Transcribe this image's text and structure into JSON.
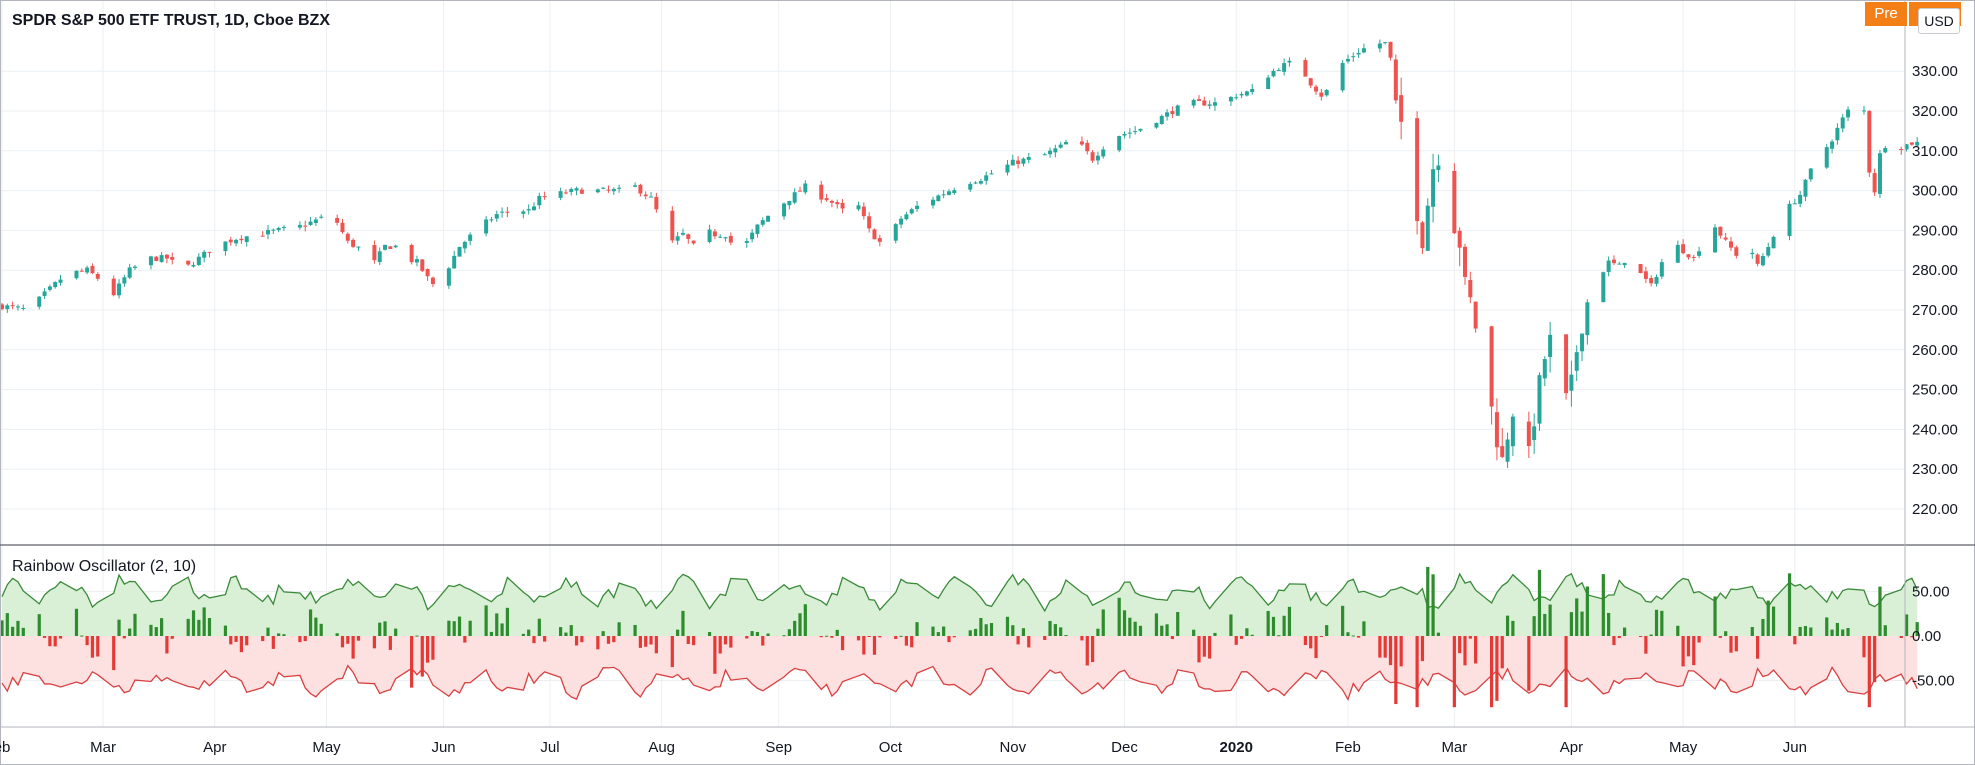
{
  "header": {
    "symbol_title": "SPDR S&P 500 ETF TRUST, 1D, Cboe BZX",
    "session_badge": "Pre",
    "currency_button": "USD"
  },
  "indicator": {
    "title": "Rainbow Oscillator (2, 10)"
  },
  "colors": {
    "up": "#26a69a",
    "down": "#ef5350",
    "osc_up_bar": "#2e8b2e",
    "osc_down_bar": "#e53935",
    "osc_up_fill": "#d9f0d6",
    "osc_down_fill": "#fde0e0",
    "grid": "#eceff2",
    "text": "#131722",
    "badge": "#f57f17"
  },
  "chart_data": [
    {
      "type": "candlestick",
      "title": "SPDR S&P 500 ETF TRUST, 1D, Cboe BZX",
      "y_ticks": [
        220,
        230,
        240,
        250,
        260,
        270,
        280,
        290,
        300,
        310,
        320,
        330
      ],
      "y_tick_labels": [
        "220.00",
        "230.00",
        "240.00",
        "250.00",
        "260.00",
        "270.00",
        "280.00",
        "290.00",
        "300.00",
        "310.00",
        "320.00",
        "330.00"
      ],
      "ylim": [
        214,
        340
      ],
      "x_labels": [
        "eb",
        "Mar",
        "Apr",
        "May",
        "Jun",
        "Jul",
        "Aug",
        "Sep",
        "Oct",
        "Nov",
        "Dec",
        "2020",
        "Feb",
        "Mar",
        "Apr",
        "May",
        "Jun"
      ],
      "x_label_positions_days": [
        0,
        19,
        40,
        61,
        83,
        103,
        124,
        146,
        167,
        190,
        211,
        232,
        253,
        273,
        295,
        316,
        337
      ],
      "close_anchors": [
        [
          0,
          271
        ],
        [
          5,
          270
        ],
        [
          8,
          274
        ],
        [
          12,
          279
        ],
        [
          16,
          280
        ],
        [
          19,
          277
        ],
        [
          21,
          274
        ],
        [
          24,
          280
        ],
        [
          28,
          283
        ],
        [
          31,
          283
        ],
        [
          34,
          280
        ],
        [
          37,
          283
        ],
        [
          40,
          286
        ],
        [
          44,
          288
        ],
        [
          48,
          289
        ],
        [
          52,
          290
        ],
        [
          56,
          291
        ],
        [
          60,
          293
        ],
        [
          63,
          292
        ],
        [
          65,
          287
        ],
        [
          68,
          285
        ],
        [
          70,
          282
        ],
        [
          72,
          286
        ],
        [
          74,
          286
        ],
        [
          76,
          283
        ],
        [
          78,
          282
        ],
        [
          80,
          278
        ],
        [
          82,
          275
        ],
        [
          84,
          281
        ],
        [
          86,
          286
        ],
        [
          90,
          291
        ],
        [
          93,
          294
        ],
        [
          96,
          295
        ],
        [
          99,
          295
        ],
        [
          101,
          298
        ],
        [
          104,
          299
        ],
        [
          108,
          300
        ],
        [
          112,
          300
        ],
        [
          116,
          300
        ],
        [
          119,
          301
        ],
        [
          122,
          298
        ],
        [
          124,
          292
        ],
        [
          126,
          287
        ],
        [
          128,
          289
        ],
        [
          130,
          286
        ],
        [
          132,
          290
        ],
        [
          134,
          289
        ],
        [
          136,
          289
        ],
        [
          138,
          285
        ],
        [
          140,
          287
        ],
        [
          142,
          291
        ],
        [
          145,
          295
        ],
        [
          148,
          298
        ],
        [
          151,
          301
        ],
        [
          153,
          299
        ],
        [
          155,
          298
        ],
        [
          157,
          296
        ],
        [
          159,
          294
        ],
        [
          161,
          296
        ],
        [
          163,
          290
        ],
        [
          165,
          287
        ],
        [
          167,
          289
        ],
        [
          169,
          293
        ],
        [
          172,
          296
        ],
        [
          175,
          298
        ],
        [
          178,
          300
        ],
        [
          181,
          302
        ],
        [
          184,
          303
        ],
        [
          187,
          305
        ],
        [
          190,
          307
        ],
        [
          193,
          308
        ],
        [
          196,
          309
        ],
        [
          199,
          311
        ],
        [
          201,
          313
        ],
        [
          203,
          311
        ],
        [
          205,
          308
        ],
        [
          207,
          311
        ],
        [
          210,
          314
        ],
        [
          213,
          315
        ],
        [
          216,
          317
        ],
        [
          220,
          320
        ],
        [
          223,
          322
        ],
        [
          226,
          322
        ],
        [
          229,
          322
        ],
        [
          232,
          324
        ],
        [
          235,
          325
        ],
        [
          238,
          329
        ],
        [
          240,
          331
        ],
        [
          242,
          332
        ],
        [
          244,
          331
        ],
        [
          246,
          327
        ],
        [
          248,
          324
        ],
        [
          250,
          326
        ],
        [
          252,
          332
        ],
        [
          255,
          335
        ],
        [
          258,
          337
        ],
        [
          260,
          337
        ],
        [
          261,
          333
        ],
        [
          262,
          322
        ],
        [
          264,
          312
        ],
        [
          265,
          303
        ],
        [
          266,
          295
        ],
        [
          267,
          288
        ],
        [
          268,
          297
        ],
        [
          269,
          306
        ],
        [
          270,
          309
        ],
        [
          271,
          305
        ],
        [
          272,
          296
        ],
        [
          274,
          287
        ],
        [
          275,
          276
        ],
        [
          276,
          272
        ],
        [
          277,
          266
        ],
        [
          278,
          256
        ],
        [
          279,
          250
        ],
        [
          280,
          245
        ],
        [
          281,
          238
        ],
        [
          282,
          232
        ],
        [
          283,
          239
        ],
        [
          284,
          245
        ],
        [
          285,
          236
        ],
        [
          286,
          225
        ],
        [
          287,
          233
        ],
        [
          288,
          243
        ],
        [
          289,
          251
        ],
        [
          290,
          258
        ],
        [
          291,
          262
        ],
        [
          292,
          256
        ],
        [
          293,
          250
        ],
        [
          294,
          247
        ],
        [
          295,
          251
        ],
        [
          296,
          260
        ],
        [
          297,
          267
        ],
        [
          298,
          272
        ],
        [
          300,
          278
        ],
        [
          302,
          282
        ],
        [
          304,
          281
        ],
        [
          306,
          284
        ],
        [
          308,
          279
        ],
        [
          310,
          276
        ],
        [
          312,
          282
        ],
        [
          314,
          287
        ],
        [
          316,
          285
        ],
        [
          318,
          283
        ],
        [
          320,
          288
        ],
        [
          322,
          291
        ],
        [
          324,
          287
        ],
        [
          326,
          284
        ],
        [
          328,
          288
        ],
        [
          330,
          281
        ],
        [
          332,
          286
        ],
        [
          334,
          292
        ],
        [
          336,
          296
        ],
        [
          338,
          299
        ],
        [
          340,
          305
        ],
        [
          342,
          309
        ],
        [
          344,
          313
        ],
        [
          346,
          318
        ],
        [
          348,
          322
        ],
        [
          350,
          320
        ],
        [
          351,
          305
        ],
        [
          352,
          300
        ],
        [
          353,
          309
        ],
        [
          355,
          314
        ],
        [
          357,
          311
        ],
        [
          359,
          312
        ]
      ],
      "days_total": 360
    },
    {
      "type": "bar",
      "title": "Rainbow Oscillator (2, 10)",
      "y_ticks": [
        -50,
        0,
        50
      ],
      "y_tick_labels": [
        "-50.00",
        "0.00",
        "50.00"
      ],
      "ylim": [
        -102,
        102
      ],
      "series": [
        {
          "role": "upper-band"
        },
        {
          "role": "lower-band"
        },
        {
          "role": "histogram"
        }
      ]
    }
  ]
}
